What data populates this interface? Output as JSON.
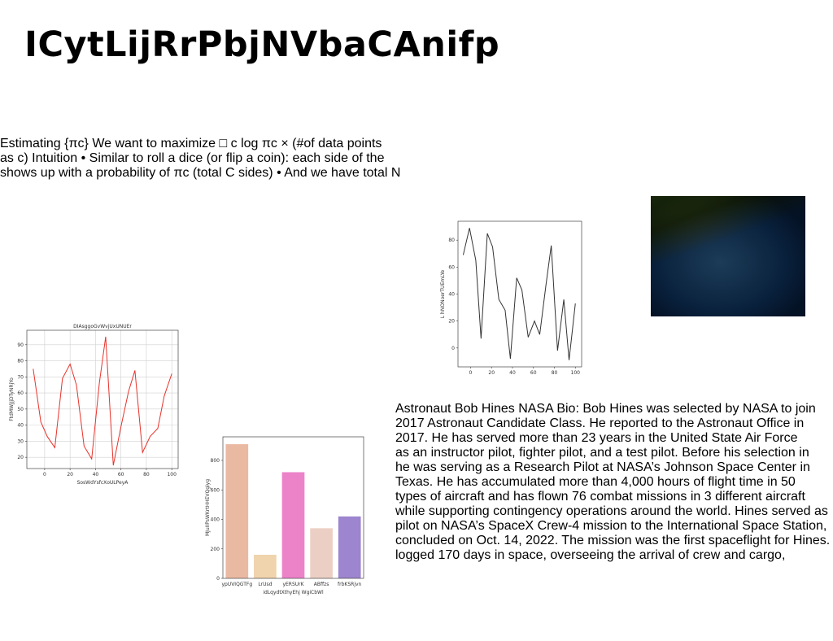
{
  "title": "ICytLijRrPbjNVbaCAnifp",
  "paragraphs": [
    [
      "Estimating {πc} We want to maximize □ c log πc × (#of data points",
      "as c) Intuition • Similar to roll a dice (or flip a coin): each side of the",
      "shows up with a probability of πc (total C sides) • And we have total N"
    ],
    [
      "Astronaut Bob Hines NASA Bio: Bob Hines was selected by NASA to join",
      "2017 Astronaut Candidate Class. He reported to the Astronaut Office in",
      "2017. He has served more than 23 years in the United State Air Force",
      "as an instructor pilot, fighter pilot, and a test pilot. Before his selection in",
      "he was serving as a Research Pilot at NASA’s Johnson Space Center in",
      "Texas. He has accumulated more than 4,000 hours of flight time in 50",
      "types of aircraft and has flown 76 combat missions in 3 different aircraft",
      "while supporting contingency operations around the world. Hines served as",
      "pilot on NASA’s SpaceX Crew-4 mission to the International Space Station,",
      "concluded on Oct. 14, 2022. The mission was the first spaceflight for Hines.",
      "logged 170 days in space, overseeing the arrival of crew and cargo,"
    ]
  ],
  "chart_data": [
    {
      "type": "line",
      "title": "DIAsggoGvWvjUxUNUEr",
      "x_label": "SosWdYsfcXoULPeyA",
      "y_label": "FtdMWjJjDTyNRjYo",
      "x": [
        -9,
        -3,
        2,
        8,
        14,
        20,
        25,
        31,
        37,
        43,
        48,
        54,
        60,
        66,
        71,
        77,
        83,
        89,
        94,
        100
      ],
      "series": [
        {
          "name": null,
          "color": "#e8322a",
          "values": [
            75,
            42,
            33,
            26,
            69,
            78,
            65,
            27,
            19,
            66,
            95,
            15,
            39,
            61,
            74,
            23,
            33,
            38,
            58,
            72
          ]
        }
      ],
      "xlim": [
        -14,
        105
      ],
      "ylim": [
        13,
        99
      ],
      "xticks": [
        0,
        20,
        40,
        60,
        80,
        100
      ],
      "yticks": [
        20,
        30,
        40,
        50,
        60,
        70,
        80,
        90
      ],
      "grid": true
    },
    {
      "type": "line",
      "x_label": "rSwmPhPqUZZvwZyHk",
      "y_label": "L hNONoerTUEmLYe",
      "x": [
        -7,
        -1,
        5,
        10,
        16,
        21,
        27,
        33,
        38,
        44,
        49,
        55,
        61,
        66,
        72,
        77,
        83,
        89,
        94,
        100
      ],
      "series": [
        {
          "name": null,
          "color": "#333333",
          "values": [
            69,
            89,
            65,
            7,
            85,
            75,
            36,
            28,
            -8,
            52,
            43,
            8,
            20,
            10,
            47,
            76,
            -2,
            36,
            -9,
            33
          ]
        }
      ],
      "xlim": [
        -12,
        106
      ],
      "ylim": [
        -14,
        94
      ],
      "xticks": [
        0,
        20,
        40,
        60,
        80,
        100
      ],
      "yticks": [
        0,
        20,
        40,
        60,
        80
      ],
      "grid": false
    },
    {
      "type": "bar",
      "x_label": "idLqydtXthyEhj WgiCbWl",
      "y_label": "MJuIIPsWKrtHHEVQgiyg",
      "categories": [
        "ypUVIQGTFg",
        "LrUsd",
        "yERSUrK",
        "ABffzs",
        "frbKSRjvn"
      ],
      "values": [
        910,
        160,
        720,
        340,
        420
      ],
      "colors": [
        "#eab9a2",
        "#efd4ad",
        "#ec82c8",
        "#eccfc4",
        "#9d85cf"
      ],
      "ylim": [
        0,
        960
      ],
      "yticks": [
        0,
        200,
        400,
        600,
        800
      ],
      "grid": false
    }
  ]
}
